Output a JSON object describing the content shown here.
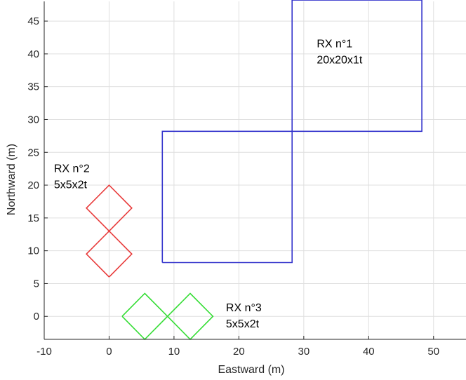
{
  "chart_data": {
    "type": "line",
    "xlabel": "Eastward (m)",
    "ylabel": "Northward (m)",
    "xlim": [
      -10,
      55
    ],
    "ylim": [
      -3.5,
      48
    ],
    "x_ticks": [
      -10,
      0,
      10,
      20,
      30,
      40,
      50
    ],
    "y_ticks": [
      0,
      5,
      10,
      15,
      20,
      25,
      30,
      35,
      40,
      45
    ],
    "grid": true,
    "series": [
      {
        "color": "#3333cc",
        "shapes": [
          {
            "x": [
              8.2,
              28.2,
              28.2,
              8.2,
              8.2
            ],
            "y": [
              8.2,
              8.2,
              28.2,
              28.2,
              8.2
            ]
          },
          {
            "x": [
              28.2,
              48.2,
              48.2,
              28.2,
              28.2
            ],
            "y": [
              28.2,
              28.2,
              48.2,
              48.2,
              28.2
            ]
          }
        ]
      },
      {
        "color": "#e83a3a",
        "shapes": [
          {
            "x": [
              0,
              3.5,
              0,
              -3.5,
              0
            ],
            "y": [
              6,
              9.5,
              13,
              9.5,
              6
            ]
          },
          {
            "x": [
              0,
              3.5,
              0,
              -3.5,
              0
            ],
            "y": [
              13,
              16.5,
              20,
              16.5,
              13
            ]
          }
        ]
      },
      {
        "color": "#33dd33",
        "shapes": [
          {
            "x": [
              2,
              5.5,
              9,
              5.5,
              2
            ],
            "y": [
              0,
              3.5,
              0,
              -3.5,
              0
            ]
          },
          {
            "x": [
              9,
              12.5,
              16,
              12.5,
              9
            ],
            "y": [
              0,
              3.5,
              0,
              -3.5,
              0
            ]
          }
        ]
      }
    ],
    "annotations": [
      {
        "lines": [
          "RX n°1",
          "20x20x1t"
        ],
        "x": 32,
        "y": 41
      },
      {
        "lines": [
          "RX n°2",
          "5x5x2t"
        ],
        "x": -8.5,
        "y": 22
      },
      {
        "lines": [
          "RX n°3",
          "5x5x2t"
        ],
        "x": 18,
        "y": 0.8
      }
    ]
  }
}
